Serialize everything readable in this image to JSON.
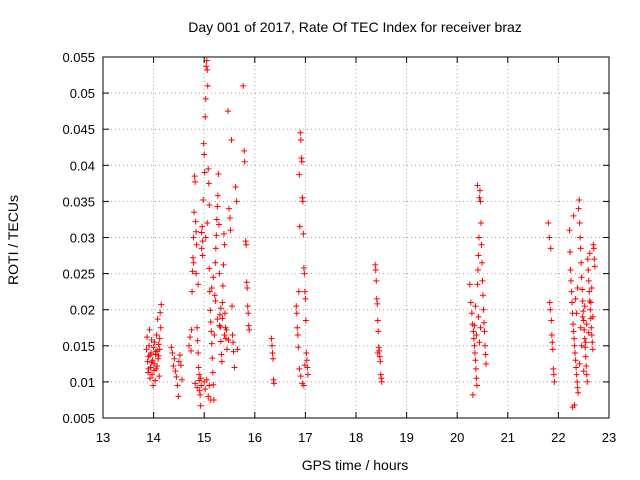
{
  "chart_data": {
    "type": "scatter",
    "title": "Day 001 of 2017, Rate Of TEC Index for receiver braz",
    "xlabel": "GPS time / hours",
    "ylabel": "ROTI / TECUs",
    "xlim": [
      13,
      23
    ],
    "ylim": [
      0.005,
      0.055
    ],
    "x_ticks": [
      13,
      14,
      15,
      16,
      17,
      18,
      19,
      20,
      21,
      22,
      23
    ],
    "y_ticks": [
      0.005,
      0.01,
      0.015,
      0.02,
      0.025,
      0.03,
      0.035,
      0.04,
      0.045,
      0.05,
      0.055
    ],
    "x_tick_labels": [
      "13",
      "14",
      "15",
      "16",
      "17",
      "18",
      "19",
      "20",
      "21",
      "22",
      "23"
    ],
    "y_tick_labels": [
      "0.005",
      "0.01",
      "0.015",
      "0.02",
      "0.025",
      "0.03",
      "0.035",
      "0.04",
      "0.045",
      "0.05",
      "0.055"
    ],
    "grid": true,
    "marker": "+",
    "color": "#ff0000",
    "points": [
      [
        13.86,
        0.0145
      ],
      [
        13.87,
        0.0162
      ],
      [
        13.88,
        0.0128
      ],
      [
        13.89,
        0.0113
      ],
      [
        13.9,
        0.0135
      ],
      [
        13.91,
        0.015
      ],
      [
        13.92,
        0.0172
      ],
      [
        13.93,
        0.0105
      ],
      [
        13.94,
        0.012
      ],
      [
        13.95,
        0.014
      ],
      [
        13.96,
        0.0158
      ],
      [
        13.97,
        0.011
      ],
      [
        13.98,
        0.013
      ],
      [
        13.99,
        0.0095
      ],
      [
        14.0,
        0.0148
      ],
      [
        14.01,
        0.0125
      ],
      [
        14.02,
        0.0155
      ],
      [
        14.03,
        0.0102
      ],
      [
        14.04,
        0.0138
      ],
      [
        14.05,
        0.0118
      ],
      [
        14.06,
        0.0165
      ],
      [
        14.07,
        0.0143
      ],
      [
        14.08,
        0.0187
      ],
      [
        14.09,
        0.0132
      ],
      [
        14.1,
        0.0152
      ],
      [
        14.11,
        0.0108
      ],
      [
        14.12,
        0.0145
      ],
      [
        14.13,
        0.0196
      ],
      [
        14.14,
        0.0175
      ],
      [
        14.15,
        0.0207
      ],
      [
        13.93,
        0.0137
      ],
      [
        13.96,
        0.0127
      ],
      [
        14.01,
        0.0116
      ],
      [
        14.04,
        0.0142
      ],
      [
        14.07,
        0.0122
      ],
      [
        14.1,
        0.0136
      ],
      [
        13.9,
        0.0118
      ],
      [
        14.12,
        0.016
      ],
      [
        14.35,
        0.0148
      ],
      [
        14.37,
        0.014
      ],
      [
        14.39,
        0.0122
      ],
      [
        14.41,
        0.0132
      ],
      [
        14.43,
        0.0115
      ],
      [
        14.45,
        0.0107
      ],
      [
        14.47,
        0.0095
      ],
      [
        14.49,
        0.008
      ],
      [
        14.5,
        0.0128
      ],
      [
        14.52,
        0.0137
      ],
      [
        14.54,
        0.0123
      ],
      [
        14.56,
        0.0103
      ],
      [
        14.7,
        0.015
      ],
      [
        14.72,
        0.0162
      ],
      [
        14.74,
        0.0143
      ],
      [
        14.75,
        0.0172
      ],
      [
        14.76,
        0.0225
      ],
      [
        14.77,
        0.0253
      ],
      [
        14.78,
        0.0272
      ],
      [
        14.79,
        0.03
      ],
      [
        14.8,
        0.0335
      ],
      [
        14.81,
        0.0385
      ],
      [
        14.82,
        0.0377
      ],
      [
        14.83,
        0.0322
      ],
      [
        14.84,
        0.0308
      ],
      [
        14.85,
        0.029
      ],
      [
        14.86,
        0.0175
      ],
      [
        14.87,
        0.0157
      ],
      [
        14.88,
        0.014
      ],
      [
        14.89,
        0.012
      ],
      [
        14.9,
        0.0102
      ],
      [
        14.91,
        0.0088
      ],
      [
        14.92,
        0.0082
      ],
      [
        14.93,
        0.0105
      ],
      [
        14.94,
        0.0095
      ],
      [
        14.95,
        0.0307
      ],
      [
        14.96,
        0.0315
      ],
      [
        14.97,
        0.0295
      ],
      [
        14.98,
        0.0352
      ],
      [
        14.99,
        0.043
      ],
      [
        15.0,
        0.0415
      ],
      [
        15.01,
        0.039
      ],
      [
        15.02,
        0.0467
      ],
      [
        15.03,
        0.0492
      ],
      [
        15.04,
        0.0537
      ],
      [
        15.05,
        0.0545
      ],
      [
        15.06,
        0.0532
      ],
      [
        15.07,
        0.051
      ],
      [
        15.08,
        0.0395
      ],
      [
        15.09,
        0.0375
      ],
      [
        15.1,
        0.0257
      ],
      [
        15.11,
        0.0225
      ],
      [
        15.12,
        0.0199
      ],
      [
        15.13,
        0.0183
      ],
      [
        15.14,
        0.017
      ],
      [
        15.15,
        0.0153
      ],
      [
        15.16,
        0.0133
      ],
      [
        15.17,
        0.0113
      ],
      [
        15.18,
        0.0096
      ],
      [
        15.19,
        0.0075
      ],
      [
        15.2,
        0.0165
      ],
      [
        15.21,
        0.022
      ],
      [
        15.22,
        0.0265
      ],
      [
        15.23,
        0.0285
      ],
      [
        15.24,
        0.0303
      ],
      [
        15.25,
        0.0325
      ],
      [
        15.26,
        0.0343
      ],
      [
        15.27,
        0.0358
      ],
      [
        15.28,
        0.0388
      ],
      [
        15.29,
        0.0318
      ],
      [
        15.3,
        0.025
      ],
      [
        15.31,
        0.0193
      ],
      [
        15.32,
        0.0176
      ],
      [
        15.33,
        0.0156
      ],
      [
        15.34,
        0.0138
      ],
      [
        15.35,
        0.0128
      ],
      [
        15.36,
        0.021
      ],
      [
        15.37,
        0.0233
      ],
      [
        15.38,
        0.0262
      ],
      [
        15.39,
        0.0305
      ],
      [
        15.4,
        0.029
      ],
      [
        15.41,
        0.0195
      ],
      [
        15.42,
        0.0175
      ],
      [
        15.43,
        0.016
      ],
      [
        15.45,
        0.0145
      ],
      [
        15.47,
        0.0475
      ],
      [
        15.49,
        0.034
      ],
      [
        15.51,
        0.0327
      ],
      [
        15.52,
        0.031
      ],
      [
        15.54,
        0.0435
      ],
      [
        15.55,
        0.0205
      ],
      [
        15.56,
        0.0165
      ],
      [
        15.57,
        0.0155
      ],
      [
        15.58,
        0.0142
      ],
      [
        15.6,
        0.012
      ],
      [
        15.62,
        0.037
      ],
      [
        15.64,
        0.035
      ],
      [
        15.66,
        0.0145
      ],
      [
        14.82,
        0.0098
      ],
      [
        14.86,
        0.0092
      ],
      [
        14.9,
        0.011
      ],
      [
        14.93,
        0.0067
      ],
      [
        15.0,
        0.01
      ],
      [
        15.02,
        0.009
      ],
      [
        15.05,
        0.0103
      ],
      [
        15.08,
        0.008
      ],
      [
        15.1,
        0.0095
      ],
      [
        15.13,
        0.0075
      ],
      [
        14.95,
        0.0285
      ],
      [
        14.97,
        0.0275
      ],
      [
        15.03,
        0.03
      ],
      [
        15.06,
        0.032
      ],
      [
        15.1,
        0.0345
      ],
      [
        15.15,
        0.023
      ],
      [
        15.18,
        0.0245
      ],
      [
        15.22,
        0.0212
      ],
      [
        15.26,
        0.0187
      ],
      [
        15.3,
        0.0178
      ],
      [
        15.33,
        0.0202
      ],
      [
        15.36,
        0.0188
      ],
      [
        15.4,
        0.0165
      ],
      [
        15.44,
        0.0172
      ],
      [
        15.48,
        0.0158
      ],
      [
        14.79,
        0.0265
      ],
      [
        14.84,
        0.025
      ],
      [
        14.88,
        0.0235
      ],
      [
        15.77,
        0.051
      ],
      [
        15.79,
        0.042
      ],
      [
        15.8,
        0.0405
      ],
      [
        15.82,
        0.0295
      ],
      [
        15.83,
        0.029
      ],
      [
        15.84,
        0.0238
      ],
      [
        15.85,
        0.023
      ],
      [
        15.86,
        0.0205
      ],
      [
        15.87,
        0.0195
      ],
      [
        15.88,
        0.0178
      ],
      [
        15.89,
        0.0172
      ],
      [
        16.33,
        0.016
      ],
      [
        16.34,
        0.015
      ],
      [
        16.35,
        0.014
      ],
      [
        16.36,
        0.0132
      ],
      [
        16.37,
        0.0103
      ],
      [
        16.38,
        0.0098
      ],
      [
        16.82,
        0.0205
      ],
      [
        16.83,
        0.0195
      ],
      [
        16.84,
        0.0175
      ],
      [
        16.85,
        0.0165
      ],
      [
        16.86,
        0.0148
      ],
      [
        16.87,
        0.0225
      ],
      [
        16.88,
        0.0387
      ],
      [
        16.89,
        0.0315
      ],
      [
        16.9,
        0.0445
      ],
      [
        16.91,
        0.0435
      ],
      [
        16.92,
        0.041
      ],
      [
        16.93,
        0.0405
      ],
      [
        16.94,
        0.0355
      ],
      [
        16.95,
        0.035
      ],
      [
        16.96,
        0.0305
      ],
      [
        16.97,
        0.0258
      ],
      [
        16.98,
        0.025
      ],
      [
        16.99,
        0.0225
      ],
      [
        17.0,
        0.0215
      ],
      [
        17.01,
        0.0185
      ],
      [
        17.02,
        0.014
      ],
      [
        17.03,
        0.013
      ],
      [
        17.04,
        0.012
      ],
      [
        17.05,
        0.011
      ],
      [
        16.88,
        0.0118
      ],
      [
        16.91,
        0.0108
      ],
      [
        16.94,
        0.0098
      ],
      [
        16.97,
        0.0095
      ],
      [
        16.99,
        0.0123
      ],
      [
        18.38,
        0.0262
      ],
      [
        18.39,
        0.0255
      ],
      [
        18.4,
        0.024
      ],
      [
        18.41,
        0.0215
      ],
      [
        18.42,
        0.0208
      ],
      [
        18.43,
        0.0185
      ],
      [
        18.44,
        0.017
      ],
      [
        18.45,
        0.0148
      ],
      [
        18.46,
        0.0143
      ],
      [
        18.47,
        0.0135
      ],
      [
        18.48,
        0.0128
      ],
      [
        18.49,
        0.011
      ],
      [
        18.5,
        0.0105
      ],
      [
        18.51,
        0.01
      ],
      [
        18.43,
        0.014
      ],
      [
        20.25,
        0.0235
      ],
      [
        20.27,
        0.021
      ],
      [
        20.29,
        0.0195
      ],
      [
        20.3,
        0.018
      ],
      [
        20.32,
        0.017
      ],
      [
        20.33,
        0.016
      ],
      [
        20.34,
        0.015
      ],
      [
        20.35,
        0.014
      ],
      [
        20.36,
        0.013
      ],
      [
        20.37,
        0.0118
      ],
      [
        20.38,
        0.0105
      ],
      [
        20.39,
        0.0095
      ],
      [
        20.4,
        0.0235
      ],
      [
        20.41,
        0.0255
      ],
      [
        20.42,
        0.0275
      ],
      [
        20.43,
        0.03
      ],
      [
        20.44,
        0.0355
      ],
      [
        20.45,
        0.0365
      ],
      [
        20.46,
        0.035
      ],
      [
        20.47,
        0.032
      ],
      [
        20.48,
        0.029
      ],
      [
        20.49,
        0.0265
      ],
      [
        20.5,
        0.024
      ],
      [
        20.51,
        0.022
      ],
      [
        20.52,
        0.02
      ],
      [
        20.53,
        0.0182
      ],
      [
        20.54,
        0.017
      ],
      [
        20.55,
        0.015
      ],
      [
        20.56,
        0.0138
      ],
      [
        20.57,
        0.0125
      ],
      [
        20.31,
        0.0082
      ],
      [
        20.34,
        0.0178
      ],
      [
        20.38,
        0.0165
      ],
      [
        20.42,
        0.019
      ],
      [
        20.46,
        0.0175
      ],
      [
        20.36,
        0.0205
      ],
      [
        20.44,
        0.0155
      ],
      [
        20.4,
        0.0372
      ],
      [
        21.8,
        0.032
      ],
      [
        21.82,
        0.03
      ],
      [
        21.83,
        0.021
      ],
      [
        21.84,
        0.02
      ],
      [
        21.85,
        0.0285
      ],
      [
        21.86,
        0.0185
      ],
      [
        21.87,
        0.0165
      ],
      [
        21.88,
        0.0155
      ],
      [
        21.89,
        0.0145
      ],
      [
        21.9,
        0.0118
      ],
      [
        21.91,
        0.011
      ],
      [
        21.92,
        0.01
      ],
      [
        22.22,
        0.031
      ],
      [
        22.23,
        0.028
      ],
      [
        22.24,
        0.0255
      ],
      [
        22.25,
        0.024
      ],
      [
        22.26,
        0.0225
      ],
      [
        22.27,
        0.021
      ],
      [
        22.28,
        0.0195
      ],
      [
        22.29,
        0.018
      ],
      [
        22.3,
        0.017
      ],
      [
        22.31,
        0.016
      ],
      [
        22.32,
        0.015
      ],
      [
        22.33,
        0.014
      ],
      [
        22.34,
        0.013
      ],
      [
        22.35,
        0.012
      ],
      [
        22.36,
        0.011
      ],
      [
        22.37,
        0.01
      ],
      [
        22.38,
        0.0092
      ],
      [
        22.39,
        0.0085
      ],
      [
        22.4,
        0.034
      ],
      [
        22.41,
        0.0352
      ],
      [
        22.42,
        0.032
      ],
      [
        22.43,
        0.03
      ],
      [
        22.44,
        0.0285
      ],
      [
        22.45,
        0.0265
      ],
      [
        22.46,
        0.0245
      ],
      [
        22.47,
        0.0228
      ],
      [
        22.48,
        0.0212
      ],
      [
        22.49,
        0.0198
      ],
      [
        22.5,
        0.0185
      ],
      [
        22.51,
        0.0172
      ],
      [
        22.52,
        0.016
      ],
      [
        22.53,
        0.0148
      ],
      [
        22.54,
        0.0135
      ],
      [
        22.55,
        0.0122
      ],
      [
        22.56,
        0.011
      ],
      [
        22.57,
        0.01
      ],
      [
        22.58,
        0.027
      ],
      [
        22.59,
        0.0255
      ],
      [
        22.6,
        0.024
      ],
      [
        22.61,
        0.0225
      ],
      [
        22.62,
        0.0212
      ],
      [
        22.63,
        0.02
      ],
      [
        22.64,
        0.0188
      ],
      [
        22.65,
        0.0175
      ],
      [
        22.66,
        0.0165
      ],
      [
        22.67,
        0.0155
      ],
      [
        22.68,
        0.0145
      ],
      [
        22.69,
        0.029
      ],
      [
        22.7,
        0.0285
      ],
      [
        22.71,
        0.027
      ],
      [
        22.72,
        0.026
      ],
      [
        22.28,
        0.0065
      ],
      [
        22.32,
        0.0068
      ],
      [
        22.36,
        0.0195
      ],
      [
        22.44,
        0.0175
      ],
      [
        22.48,
        0.019
      ],
      [
        22.52,
        0.0205
      ],
      [
        22.56,
        0.018
      ],
      [
        22.6,
        0.0168
      ],
      [
        22.64,
        0.021
      ],
      [
        22.68,
        0.019
      ],
      [
        22.3,
        0.033
      ],
      [
        22.34,
        0.0215
      ],
      [
        22.38,
        0.023
      ],
      [
        22.46,
        0.015
      ],
      [
        22.54,
        0.0155
      ],
      [
        22.62,
        0.0278
      ],
      [
        22.66,
        0.023
      ],
      [
        22.42,
        0.0125
      ],
      [
        22.5,
        0.0115
      ]
    ]
  }
}
